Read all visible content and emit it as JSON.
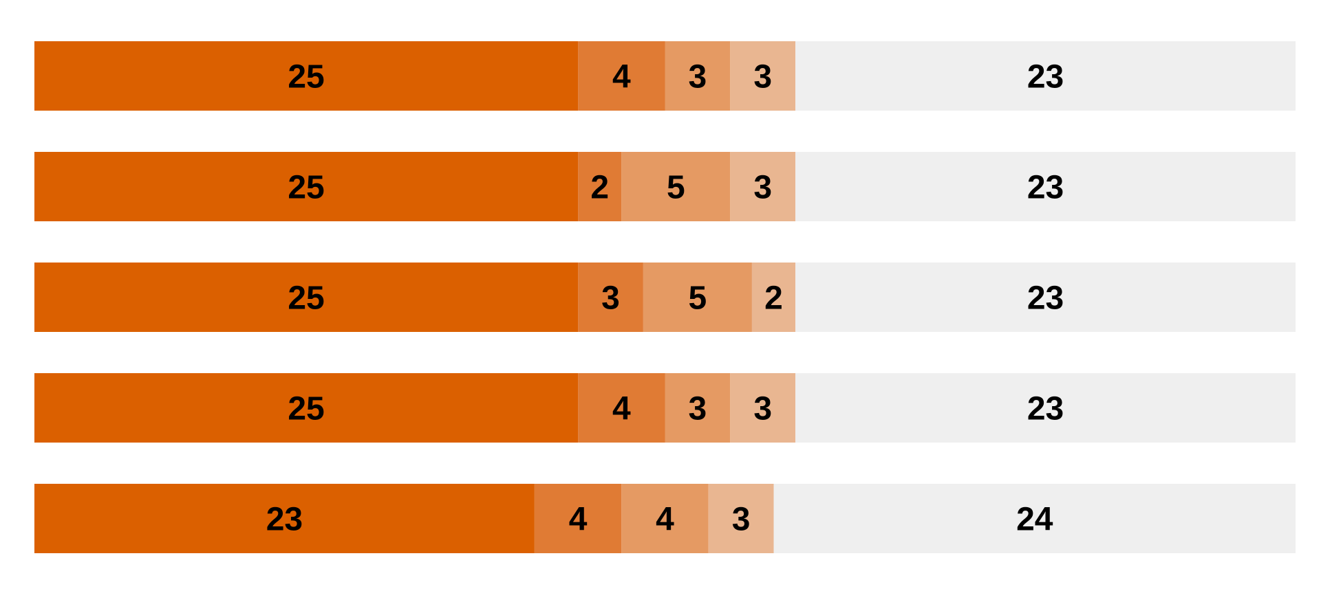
{
  "chart_data": {
    "type": "bar",
    "orientation": "horizontal",
    "stacked": true,
    "title": "",
    "xlabel": "",
    "ylabel": "",
    "categories": [
      "",
      "",
      "",
      "",
      ""
    ],
    "series": [
      {
        "color": "#DB6000",
        "values": [
          25,
          25,
          25,
          25,
          23
        ]
      },
      {
        "color": "#E07B34",
        "values": [
          4,
          2,
          3,
          4,
          4
        ]
      },
      {
        "color": "#E59A63",
        "values": [
          3,
          5,
          5,
          3,
          4
        ]
      },
      {
        "color": "#E9B691",
        "values": [
          3,
          3,
          2,
          3,
          3
        ]
      },
      {
        "color": "#EFEFEF",
        "values": [
          23,
          23,
          23,
          23,
          24
        ]
      }
    ],
    "xlim": [
      0,
      58
    ],
    "grid": false,
    "legend": "none",
    "data_labels": true
  }
}
